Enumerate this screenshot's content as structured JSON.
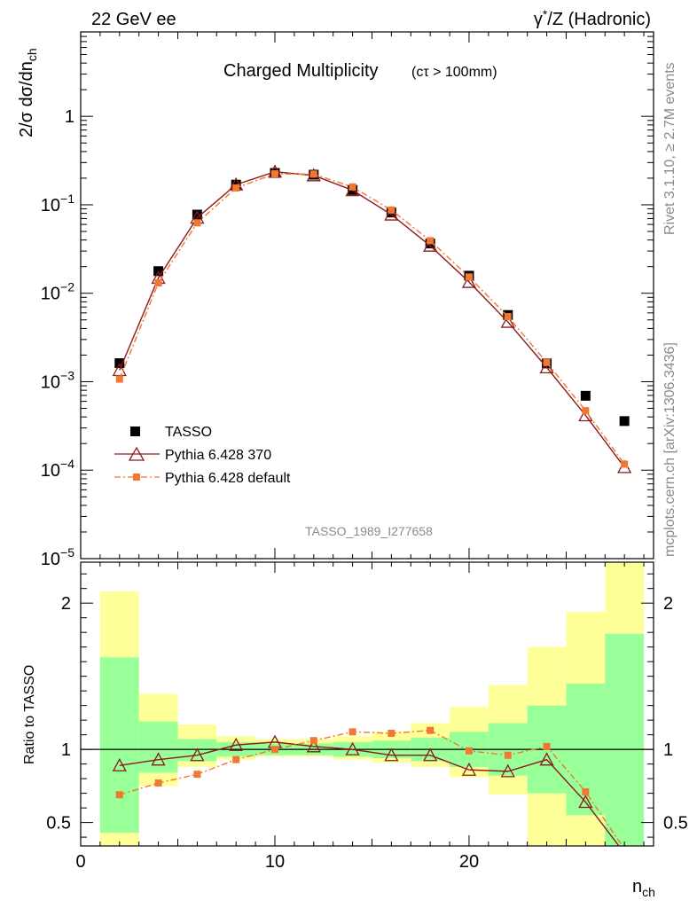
{
  "header": {
    "left": "22 GeV ee",
    "right_sup": "*",
    "right_pre": "γ",
    "right_post": "/Z (Hadronic)"
  },
  "side_text": {
    "rivet": "Rivet 3.1.10, ≥ 2.7M events",
    "mcplots": "mcplots.cern.ch [arXiv:1306.3436]"
  },
  "chart_data": [
    {
      "type": "scatter",
      "title": "Charged Multiplicity",
      "subtitle": "(cτ > 100mm)",
      "analysis_tag": "TASSO_1989_I277658",
      "ylabel": "2/σ dσ/dn_ch",
      "xlabel": "n_ch",
      "yscale": "log",
      "xlim": [
        0,
        29.5
      ],
      "ylim": [
        1e-05,
        9
      ],
      "y_ticks": [
        {
          "value": 1e-05,
          "label": "10",
          "exp": "−5"
        },
        {
          "value": 0.0001,
          "label": "10",
          "exp": "−4"
        },
        {
          "value": 0.001,
          "label": "10",
          "exp": "−3"
        },
        {
          "value": 0.01,
          "label": "10",
          "exp": "−2"
        },
        {
          "value": 0.1,
          "label": "10",
          "exp": "−1"
        },
        {
          "value": 1,
          "label": "1",
          "exp": ""
        }
      ],
      "legend_position": "bottom-left",
      "series": [
        {
          "name": "TASSO",
          "style": "data",
          "color": "#000000",
          "x": [
            2,
            4,
            6,
            8,
            10,
            12,
            14,
            16,
            18,
            20,
            22,
            24,
            26,
            28
          ],
          "y": [
            0.00162,
            0.0178,
            0.0775,
            0.169,
            0.229,
            0.219,
            0.147,
            0.0818,
            0.0365,
            0.0158,
            0.00568,
            0.00161,
            0.000693,
            0.000359
          ]
        },
        {
          "name": "Pythia 6.428 370",
          "style": "triangle-line",
          "color": "#8b1a1a",
          "x": [
            2,
            4,
            6,
            8,
            10,
            12,
            14,
            16,
            18,
            20,
            22,
            24,
            26,
            28
          ],
          "y": [
            0.00135,
            0.0149,
            0.0713,
            0.169,
            0.236,
            0.215,
            0.146,
            0.0774,
            0.0344,
            0.0134,
            0.00474,
            0.00145,
            0.000416,
            0.000108
          ]
        },
        {
          "name": "Pythia 6.428 default",
          "style": "square-dashdot",
          "color": "#f07830",
          "x": [
            2,
            4,
            6,
            8,
            10,
            12,
            14,
            16,
            18,
            20,
            22,
            24,
            26,
            28
          ],
          "y": [
            0.00107,
            0.0131,
            0.0625,
            0.155,
            0.224,
            0.222,
            0.159,
            0.0873,
            0.0393,
            0.0153,
            0.00545,
            0.00165,
            0.000471,
            0.000117
          ]
        }
      ]
    },
    {
      "type": "line",
      "ylabel": "Ratio to TASSO",
      "xlabel": "n_ch",
      "xlim": [
        0,
        29.5
      ],
      "ylim": [
        0.34,
        2.28
      ],
      "x_ticks": [
        0,
        10,
        20
      ],
      "y_ticks": [
        0.5,
        1,
        2
      ],
      "reference_line": 1,
      "bands": {
        "bins": [
          [
            1,
            3
          ],
          [
            3,
            5
          ],
          [
            5,
            7
          ],
          [
            7,
            9
          ],
          [
            9,
            11
          ],
          [
            11,
            13
          ],
          [
            13,
            15
          ],
          [
            15,
            17
          ],
          [
            17,
            19
          ],
          [
            19,
            21
          ],
          [
            21,
            23
          ],
          [
            23,
            25
          ],
          [
            25,
            27
          ],
          [
            27,
            29
          ]
        ],
        "inner_color": "#99ff99",
        "outer_color": "#ffff99",
        "inner_lo": [
          0.43,
          0.84,
          0.92,
          0.95,
          0.96,
          0.96,
          0.95,
          0.94,
          0.92,
          0.88,
          0.82,
          0.7,
          0.55,
          0.3
        ],
        "inner_hi": [
          1.63,
          1.19,
          1.07,
          1.05,
          1.04,
          1.04,
          1.05,
          1.06,
          1.08,
          1.12,
          1.18,
          1.3,
          1.45,
          1.79
        ],
        "outer_lo": [
          0.3,
          0.75,
          0.88,
          0.93,
          0.95,
          0.95,
          0.93,
          0.91,
          0.88,
          0.81,
          0.69,
          0.34,
          0.34,
          0.34
        ],
        "outer_hi": [
          2.08,
          1.38,
          1.17,
          1.09,
          1.07,
          1.07,
          1.09,
          1.12,
          1.18,
          1.29,
          1.44,
          1.7,
          1.94,
          2.28
        ]
      },
      "series": [
        {
          "name": "Pythia 6.428 370",
          "color": "#8b1a1a",
          "x": [
            2,
            4,
            6,
            8,
            10,
            12,
            14,
            16,
            18,
            20,
            22,
            24,
            26,
            28
          ],
          "y": [
            0.89,
            0.93,
            0.96,
            1.03,
            1.05,
            1.02,
            1.0,
            0.96,
            0.96,
            0.86,
            0.85,
            0.93,
            0.64,
            0.29
          ]
        },
        {
          "name": "Pythia 6.428 default",
          "color": "#f07830",
          "x": [
            2,
            4,
            6,
            8,
            10,
            12,
            14,
            16,
            18,
            20,
            22,
            24,
            26,
            28
          ],
          "y": [
            0.69,
            0.77,
            0.83,
            0.93,
            1.0,
            1.06,
            1.12,
            1.11,
            1.13,
            0.99,
            0.96,
            1.02,
            0.71,
            0.32
          ]
        }
      ]
    }
  ]
}
